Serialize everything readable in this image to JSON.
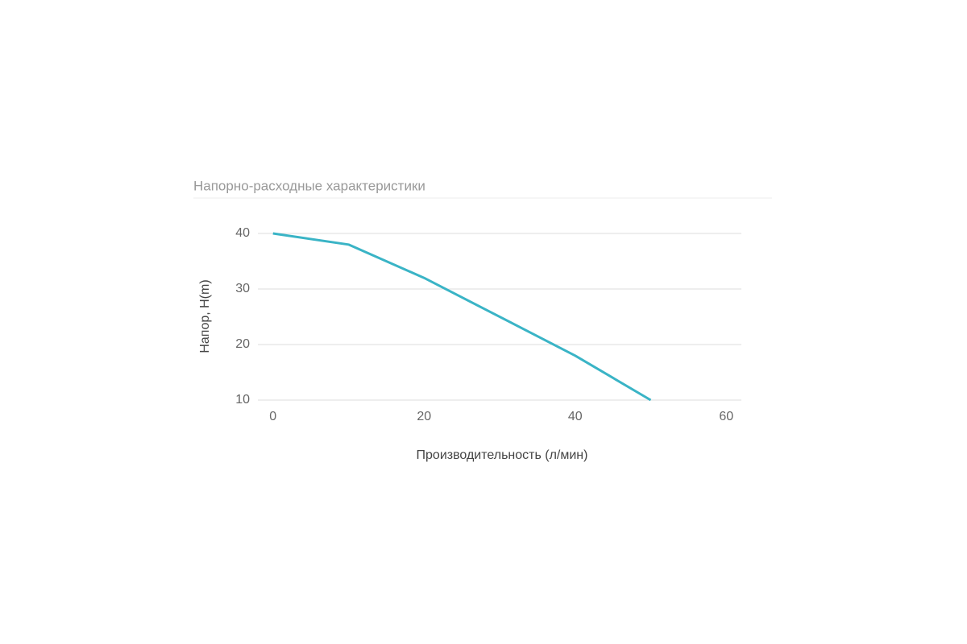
{
  "chart_data": {
    "type": "line",
    "title": "Напорно-расходные характеристики",
    "x_label": "Производительность (л/мин)",
    "y_label": "Напор, H(m)",
    "x": [
      0,
      10,
      20,
      40,
      50
    ],
    "series": [
      {
        "name": "Напор",
        "color": "#3ab4c6",
        "values": [
          40,
          38,
          32,
          18,
          10
        ]
      }
    ],
    "xlim": [
      -2,
      62
    ],
    "ylim": [
      10,
      40
    ],
    "xticks": [
      0,
      20,
      40,
      60
    ],
    "yticks": [
      10,
      20,
      30,
      40
    ],
    "grid": true
  }
}
